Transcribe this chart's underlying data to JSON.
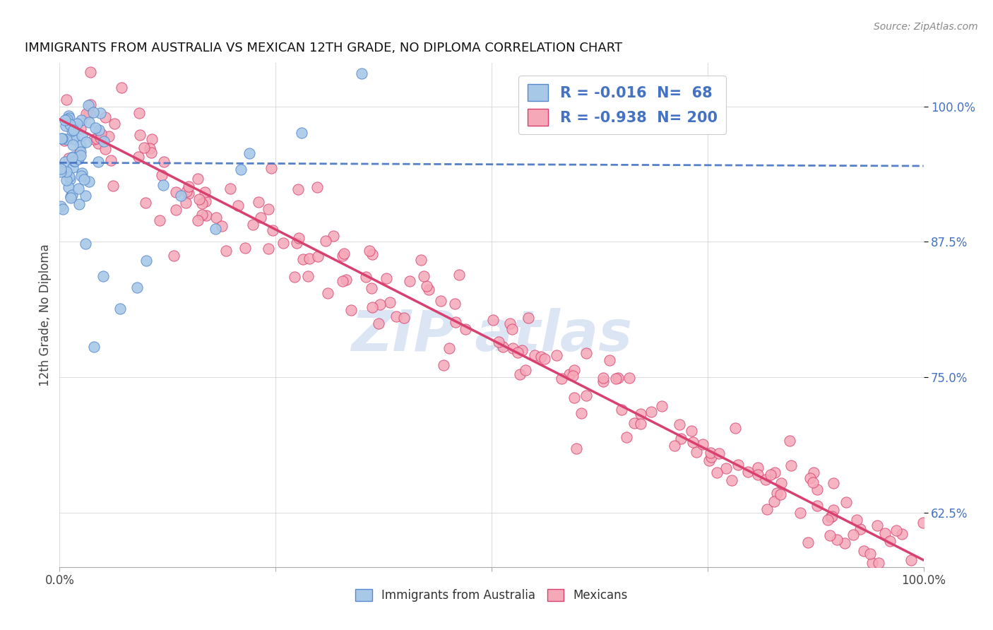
{
  "title": "IMMIGRANTS FROM AUSTRALIA VS MEXICAN 12TH GRADE, NO DIPLOMA CORRELATION CHART",
  "source": "Source: ZipAtlas.com",
  "ylabel": "12th Grade, No Diploma",
  "xlim": [
    0.0,
    1.0
  ],
  "ylim": [
    0.575,
    1.04
  ],
  "yticks": [
    0.625,
    0.75,
    0.875,
    1.0
  ],
  "ytick_labels": [
    "62.5%",
    "75.0%",
    "87.5%",
    "100.0%"
  ],
  "xticks": [
    0.0,
    0.25,
    0.5,
    0.75,
    1.0
  ],
  "xtick_labels": [
    "0.0%",
    "",
    "",
    "",
    "100.0%"
  ],
  "legend_labels": [
    "Immigrants from Australia",
    "Mexicans"
  ],
  "australia_R": "-0.016",
  "australia_N": "68",
  "mexican_R": "-0.938",
  "mexican_N": "200",
  "australia_scatter_color": "#a8c8e8",
  "mexican_scatter_color": "#f5a8b8",
  "australia_edge_color": "#5588cc",
  "mexican_edge_color": "#d84070",
  "australia_line_color": "#4472c4",
  "mexican_line_color": "#d84070",
  "legend_text_color": "#4472c4",
  "watermark_color": "#c8d8ee",
  "background_color": "#ffffff",
  "grid_color": "#d0d0d0",
  "title_fontsize": 13,
  "tick_fontsize": 12,
  "source_fontsize": 10,
  "legend_fontsize": 15
}
